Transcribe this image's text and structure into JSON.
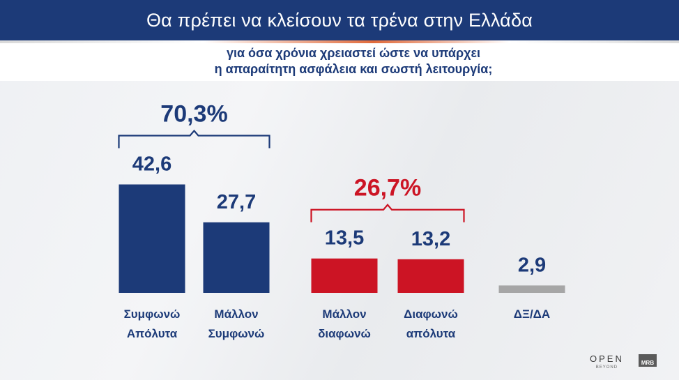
{
  "header": {
    "title": "Θα πρέπει να κλείσουν τα τρένα στην Ελλάδα",
    "subtitle_line1": "για όσα χρόνια χρειαστεί ώστε να υπάρχει",
    "subtitle_line2": "η απαραίτητη ασφάλεια και σωστή λειτουργία;"
  },
  "colors": {
    "agree": "#1c3a78",
    "disagree": "#cc1424",
    "dk_na": "#a6a6a6",
    "header_bg": "#1c3a78"
  },
  "chart_data": {
    "type": "bar",
    "categories": [
      [
        "Συμφωνώ",
        "Απόλυτα"
      ],
      [
        "Μάλλον",
        "Συμφωνώ"
      ],
      [
        "Μάλλον",
        "διαφωνώ"
      ],
      [
        "Διαφωνώ",
        "απόλυτα"
      ],
      [
        "ΔΞ/ΔΑ"
      ]
    ],
    "values": [
      42.6,
      27.7,
      13.5,
      13.2,
      2.9
    ],
    "value_labels": [
      "42,6",
      "27,7",
      "13,5",
      "13,2",
      "2,9"
    ],
    "bar_colors": [
      "#1c3a78",
      "#1c3a78",
      "#cc1424",
      "#cc1424",
      "#a6a6a6"
    ],
    "groups": [
      {
        "label": "70,3%",
        "bars": [
          0,
          1
        ],
        "color": "#1c3a78"
      },
      {
        "label": "26,7%",
        "bars": [
          2,
          3
        ],
        "color": "#cc1424"
      }
    ],
    "title": "Θα πρέπει να κλείσουν τα τρένα στην Ελλάδα",
    "xlabel": "",
    "ylabel": "",
    "ylim": [
      0,
      50
    ],
    "grid": false
  },
  "logos": {
    "open_text": "OPEN",
    "open_tagline": "BEYOND",
    "mrb_text": "MRB"
  }
}
